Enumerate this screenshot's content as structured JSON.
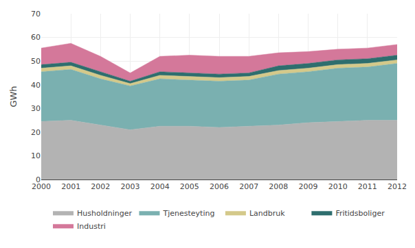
{
  "chart_data": {
    "type": "area",
    "stacked": true,
    "x": [
      2000,
      2001,
      2002,
      2003,
      2004,
      2005,
      2006,
      2007,
      2008,
      2009,
      2010,
      2011,
      2012
    ],
    "series": [
      {
        "name": "Husholdninger",
        "color": "#b3b3b3",
        "values": [
          24.5,
          25.0,
          23.0,
          21.0,
          22.5,
          22.5,
          22.0,
          22.5,
          23.0,
          24.0,
          24.5,
          25.0,
          25.0
        ]
      },
      {
        "name": "Tjenesteyting",
        "color": "#7ab0b0",
        "values": [
          21.0,
          21.5,
          19.5,
          18.5,
          20.0,
          19.5,
          19.5,
          19.5,
          21.5,
          21.5,
          22.5,
          22.5,
          24.0
        ]
      },
      {
        "name": "Landbruk",
        "color": "#d4c98a",
        "values": [
          1.5,
          1.5,
          1.5,
          1.0,
          1.5,
          1.5,
          1.5,
          1.5,
          1.5,
          1.5,
          1.5,
          1.5,
          1.5
        ]
      },
      {
        "name": "Fritidsboliger",
        "color": "#2e6e6e",
        "values": [
          1.5,
          1.5,
          1.5,
          1.0,
          1.5,
          1.5,
          1.5,
          1.5,
          2.0,
          2.0,
          2.0,
          2.0,
          2.0
        ]
      },
      {
        "name": "Industri",
        "color": "#d4789a",
        "values": [
          7.0,
          8.0,
          6.5,
          3.5,
          6.5,
          7.5,
          7.5,
          7.0,
          5.5,
          5.0,
          4.5,
          4.5,
          4.5
        ]
      }
    ],
    "ylabel": "GWh",
    "xlim": [
      2000,
      2012
    ],
    "xticks": [
      2000,
      2001,
      2002,
      2003,
      2004,
      2005,
      2006,
      2007,
      2008,
      2009,
      2010,
      2011,
      2012
    ],
    "ylim": [
      0,
      70
    ],
    "yticks": [
      0,
      10,
      20,
      30,
      40,
      50,
      60,
      70
    ],
    "grid": true,
    "legend": "bottom"
  }
}
